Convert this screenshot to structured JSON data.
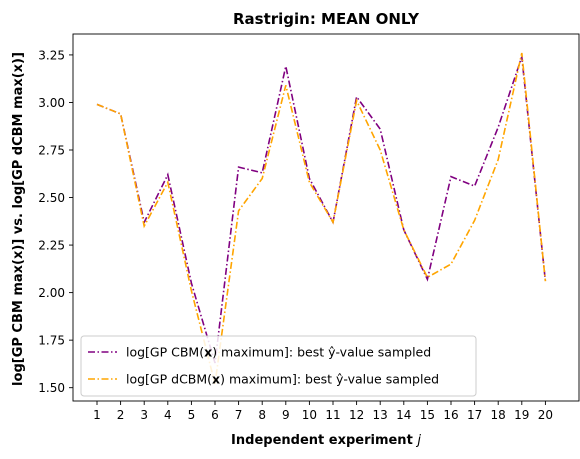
{
  "chart_data": {
    "type": "line",
    "title": "Rastrigin: MEAN ONLY",
    "xlabel": "Independent experiment j",
    "ylabel": "log[GP CBM max(x)] vs. log[GP dCBM max(x)]",
    "categories": [
      "1",
      "2",
      "3",
      "4",
      "5",
      "6",
      "7",
      "8",
      "9",
      "10",
      "11",
      "12",
      "13",
      "14",
      "15",
      "16",
      "17",
      "18",
      "19",
      "20"
    ],
    "ylim": [
      1.43,
      3.36
    ],
    "yticks": [
      1.5,
      1.75,
      2.0,
      2.25,
      2.5,
      2.75,
      3.0,
      3.25
    ],
    "grid": false,
    "legend_position": "lower-left",
    "series": [
      {
        "name": "log[GP CBM(x) maximum]: best ŷ-value sampled",
        "color": "#800080",
        "values": [
          2.99,
          2.94,
          2.37,
          2.62,
          2.05,
          1.63,
          2.66,
          2.63,
          3.19,
          2.6,
          2.37,
          3.03,
          2.86,
          2.33,
          2.07,
          2.61,
          2.56,
          2.87,
          3.24,
          2.06
        ]
      },
      {
        "name": "log[GP dCBM(x) maximum]: best ŷ-value sampled",
        "color": "#FFA500",
        "values": [
          2.99,
          2.94,
          2.35,
          2.58,
          2.01,
          1.52,
          2.43,
          2.6,
          3.09,
          2.58,
          2.37,
          3.01,
          2.75,
          2.33,
          2.08,
          2.15,
          2.38,
          2.7,
          3.26,
          2.06
        ]
      }
    ]
  }
}
